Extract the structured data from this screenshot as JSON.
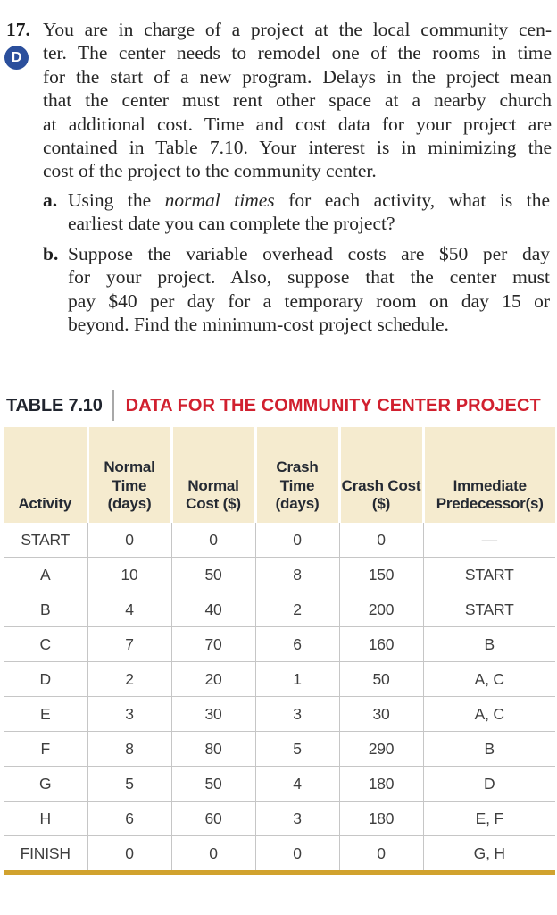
{
  "problem": {
    "number": "17.",
    "badge": "D",
    "statement_lines": [
      "You are in charge of a project at the local community cen-",
      "ter. The center needs to remodel one of the rooms in time",
      "for the start of a new program. Delays in the project mean",
      "that the center must rent other space at a nearby church",
      "at additional cost. Time and cost data for your project are",
      "contained in Table 7.10. Your interest is in minimizing the",
      "cost of the project to the community center."
    ],
    "part_a": {
      "marker": "a.",
      "line1_pre": "Using the ",
      "line1_italic": "normal times",
      "line1_post": " for each activity, what is the",
      "line2": "earliest date you can complete the project?"
    },
    "part_b": {
      "marker": "b.",
      "lines": [
        "Suppose the variable overhead costs are $50 per day",
        "for your project. Also, suppose that the center must",
        "pay $40 per day for a temporary room on day 15 or",
        "beyond. Find the minimum-cost project schedule."
      ]
    }
  },
  "table": {
    "label": "TABLE 7.10",
    "caption": "DATA FOR THE COMMUNITY CENTER PROJECT",
    "columns": [
      "Activity",
      "Normal\nTime\n(days)",
      "Normal\nCost ($)",
      "Crash\nTime\n(days)",
      "Crash Cost\n($)",
      "Immediate\nPredecessor(s)"
    ],
    "rows": [
      [
        "START",
        "0",
        "0",
        "0",
        "0",
        "—"
      ],
      [
        "A",
        "10",
        "50",
        "8",
        "150",
        "START"
      ],
      [
        "B",
        "4",
        "40",
        "2",
        "200",
        "START"
      ],
      [
        "C",
        "7",
        "70",
        "6",
        "160",
        "B"
      ],
      [
        "D",
        "2",
        "20",
        "1",
        "50",
        "A, C"
      ],
      [
        "E",
        "3",
        "30",
        "3",
        "30",
        "A, C"
      ],
      [
        "F",
        "8",
        "80",
        "5",
        "290",
        "B"
      ],
      [
        "G",
        "5",
        "50",
        "4",
        "180",
        "D"
      ],
      [
        "H",
        "6",
        "60",
        "3",
        "180",
        "E, F"
      ],
      [
        "FINISH",
        "0",
        "0",
        "0",
        "0",
        "G, H"
      ]
    ]
  },
  "colors": {
    "badge_blue": "#2b4f9c",
    "caption_red": "#d1202f",
    "header_beige": "#f5ebcf",
    "table_bottom_gold": "#d1a22e",
    "grid_gray": "#c6c6c6"
  }
}
